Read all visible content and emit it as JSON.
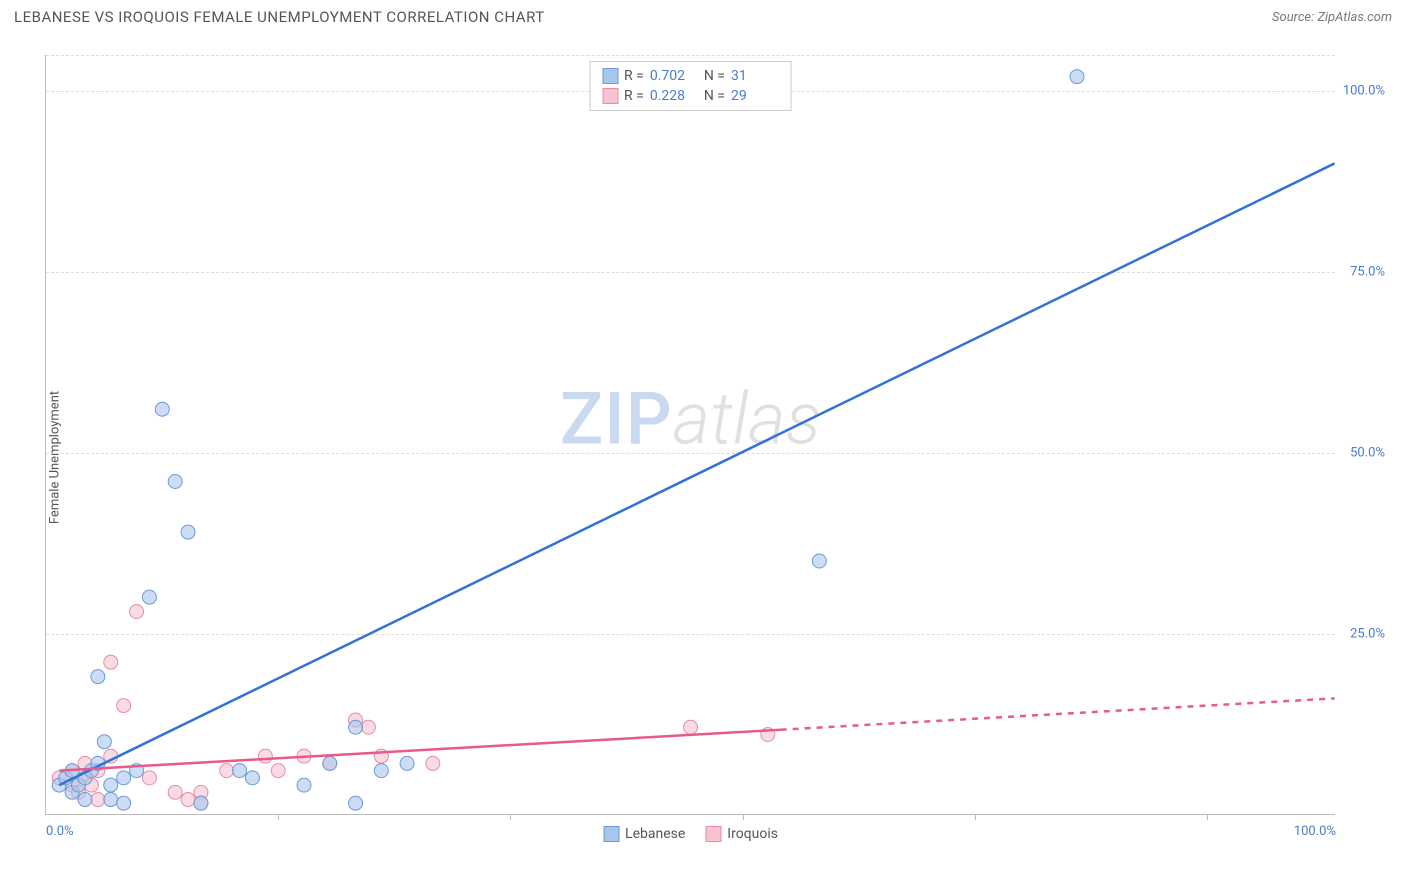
{
  "header": {
    "title": "LEBANESE VS IROQUOIS FEMALE UNEMPLOYMENT CORRELATION CHART",
    "source_label": "Source: ",
    "source_value": "ZipAtlas.com"
  },
  "axes": {
    "y_label": "Female Unemployment",
    "y_ticks": [
      {
        "value": 25,
        "label": "25.0%"
      },
      {
        "value": 50,
        "label": "50.0%"
      },
      {
        "value": 75,
        "label": "75.0%"
      },
      {
        "value": 100,
        "label": "100.0%"
      }
    ],
    "x_ticks": [
      {
        "value": 0,
        "label": "0.0%"
      },
      {
        "value": 100,
        "label": "100.0%"
      }
    ],
    "x_minor_ticks": [
      18,
      36,
      54,
      72,
      90
    ],
    "xlim": [
      0,
      100
    ],
    "ylim": [
      0,
      105
    ]
  },
  "stats": {
    "series1": {
      "R_label": "R =",
      "R": "0.702",
      "N_label": "N =",
      "N": "31"
    },
    "series2": {
      "R_label": "R =",
      "R": "0.228",
      "N_label": "N =",
      "N": "29"
    }
  },
  "legend": {
    "series1_name": "Lebanese",
    "series2_name": "Iroquois"
  },
  "colors": {
    "series1_fill": "#a8c5ec",
    "series1_stroke": "#6b9bd8",
    "series1_line": "#3172d8",
    "series2_fill": "#f5c4d0",
    "series2_stroke": "#e88ba5",
    "series2_line": "#e85a8a",
    "grid": "#dddddd",
    "axis": "#bbbbbb",
    "text": "#555555",
    "tick_text": "#4a7bd0",
    "background": "#ffffff"
  },
  "style": {
    "point_radius": 7,
    "point_opacity": 0.6,
    "line_width": 2.5,
    "title_fontsize": 15,
    "label_fontsize": 13,
    "legend_fontsize": 14,
    "watermark_fontsize": 72,
    "watermark_zip_color": "#c9d9f0",
    "watermark_atlas_color": "#e0e0e0"
  },
  "watermark": {
    "part1": "ZIP",
    "part2": "atlas"
  },
  "series": {
    "lebanese": {
      "type": "scatter",
      "regression": {
        "x1": 1,
        "y1": 4,
        "x2": 100,
        "y2": 90,
        "dashed_from_x": null
      },
      "points": [
        {
          "x": 1,
          "y": 4
        },
        {
          "x": 1.5,
          "y": 5
        },
        {
          "x": 2,
          "y": 3
        },
        {
          "x": 2,
          "y": 6
        },
        {
          "x": 2.5,
          "y": 4
        },
        {
          "x": 3,
          "y": 5
        },
        {
          "x": 3,
          "y": 2
        },
        {
          "x": 3.5,
          "y": 6
        },
        {
          "x": 4,
          "y": 7
        },
        {
          "x": 4,
          "y": 19
        },
        {
          "x": 4.5,
          "y": 10
        },
        {
          "x": 5,
          "y": 4
        },
        {
          "x": 5,
          "y": 2
        },
        {
          "x": 6,
          "y": 5
        },
        {
          "x": 6,
          "y": 1.5
        },
        {
          "x": 7,
          "y": 6
        },
        {
          "x": 8,
          "y": 30
        },
        {
          "x": 9,
          "y": 56
        },
        {
          "x": 10,
          "y": 46
        },
        {
          "x": 11,
          "y": 39
        },
        {
          "x": 12,
          "y": 1.5
        },
        {
          "x": 15,
          "y": 6
        },
        {
          "x": 16,
          "y": 5
        },
        {
          "x": 20,
          "y": 4
        },
        {
          "x": 22,
          "y": 7
        },
        {
          "x": 24,
          "y": 1.5
        },
        {
          "x": 24,
          "y": 12
        },
        {
          "x": 26,
          "y": 6
        },
        {
          "x": 28,
          "y": 7
        },
        {
          "x": 60,
          "y": 35
        },
        {
          "x": 80,
          "y": 102
        }
      ]
    },
    "iroquois": {
      "type": "scatter",
      "regression": {
        "x1": 1,
        "y1": 6,
        "x2": 100,
        "y2": 16,
        "dashed_from_x": 57
      },
      "points": [
        {
          "x": 1,
          "y": 5
        },
        {
          "x": 2,
          "y": 4
        },
        {
          "x": 2,
          "y": 6
        },
        {
          "x": 2.5,
          "y": 3
        },
        {
          "x": 3,
          "y": 5
        },
        {
          "x": 3,
          "y": 7
        },
        {
          "x": 3.5,
          "y": 4
        },
        {
          "x": 4,
          "y": 2
        },
        {
          "x": 4,
          "y": 6
        },
        {
          "x": 5,
          "y": 8
        },
        {
          "x": 5,
          "y": 21
        },
        {
          "x": 6,
          "y": 15
        },
        {
          "x": 7,
          "y": 28
        },
        {
          "x": 8,
          "y": 5
        },
        {
          "x": 10,
          "y": 3
        },
        {
          "x": 11,
          "y": 2
        },
        {
          "x": 12,
          "y": 3
        },
        {
          "x": 12,
          "y": 1.5
        },
        {
          "x": 14,
          "y": 6
        },
        {
          "x": 17,
          "y": 8
        },
        {
          "x": 18,
          "y": 6
        },
        {
          "x": 20,
          "y": 8
        },
        {
          "x": 22,
          "y": 7
        },
        {
          "x": 24,
          "y": 13
        },
        {
          "x": 25,
          "y": 12
        },
        {
          "x": 26,
          "y": 8
        },
        {
          "x": 30,
          "y": 7
        },
        {
          "x": 50,
          "y": 12
        },
        {
          "x": 56,
          "y": 11
        }
      ]
    }
  }
}
